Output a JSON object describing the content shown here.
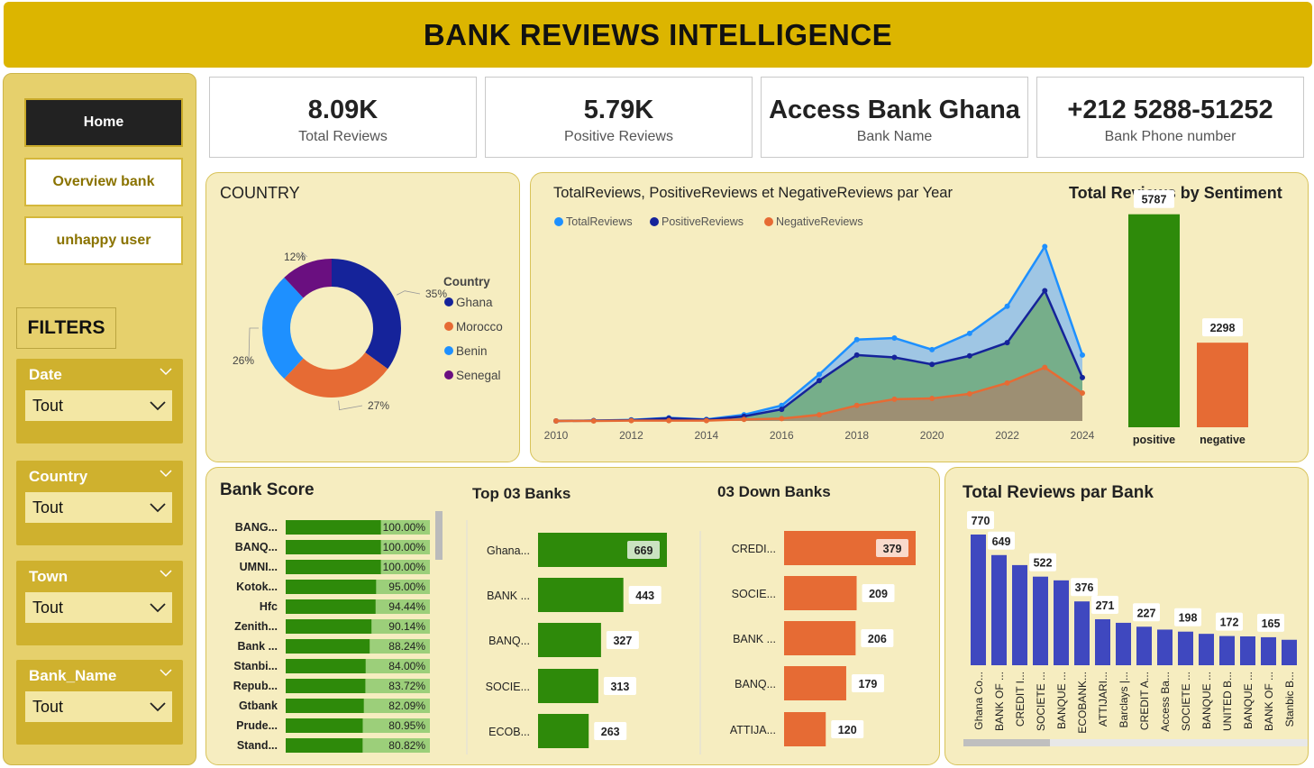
{
  "header": {
    "title": "BANK REVIEWS INTELLIGENCE"
  },
  "nav": {
    "items": [
      {
        "label": "Home",
        "active": true
      },
      {
        "label": "Overview bank",
        "active": false
      },
      {
        "label": "unhappy user",
        "active": false
      }
    ]
  },
  "filters": {
    "title": "FILTERS",
    "items": [
      {
        "label": "Date",
        "value": "Tout"
      },
      {
        "label": "Country",
        "value": "Tout"
      },
      {
        "label": "Town",
        "value": "Tout"
      },
      {
        "label": "Bank_Name",
        "value": "Tout"
      }
    ]
  },
  "kpis": [
    {
      "value": "8.09K",
      "label": "Total Reviews"
    },
    {
      "value": "5.79K",
      "label": "Positive Reviews"
    },
    {
      "value": "Access Bank Ghana",
      "label": "Bank Name"
    },
    {
      "value": "+212 5288-51252",
      "label": "Bank Phone number"
    }
  ],
  "colors": {
    "gold": "#dcb500",
    "panel": "#f6edc0",
    "green": "#2e8a0a",
    "orange": "#e66b34",
    "navy": "#15239a",
    "lightblue": "#1e90ff",
    "purple": "#6a0f80",
    "bar_blue": "#3f48bf"
  },
  "country_chart": {
    "title": "COUNTRY",
    "legend_title": "Country",
    "chart_data": {
      "type": "pie",
      "labels": [
        "Ghana",
        "Morocco",
        "Benin",
        "Senegal"
      ],
      "values": [
        35,
        27,
        26,
        12
      ],
      "value_labels": [
        "35%",
        "27%",
        "26%",
        "12%"
      ],
      "colors": [
        "#15239a",
        "#e66b34",
        "#1e90ff",
        "#6a0f80"
      ],
      "legend": "right"
    }
  },
  "year_chart": {
    "title": "TotalReviews, PositiveReviews et NegativeReviews par Year",
    "chart_data": {
      "type": "area",
      "x": [
        2010,
        2011,
        2012,
        2013,
        2014,
        2015,
        2016,
        2017,
        2018,
        2019,
        2020,
        2021,
        2022,
        2023,
        2024
      ],
      "x_ticks": [
        "2010",
        "2012",
        "2014",
        "2016",
        "2018",
        "2020",
        "2022",
        "2024"
      ],
      "series": [
        {
          "name": "TotalReviews",
          "color": "#1e90ff",
          "values": [
            0,
            5,
            15,
            40,
            20,
            80,
            200,
            600,
            1050,
            1070,
            920,
            1130,
            1480,
            2250,
            850
          ]
        },
        {
          "name": "PositiveReviews",
          "color": "#15239a",
          "values": [
            0,
            5,
            10,
            35,
            15,
            60,
            150,
            520,
            850,
            820,
            730,
            840,
            1010,
            1680,
            560
          ]
        },
        {
          "name": "NegativeReviews",
          "color": "#e66b34",
          "values": [
            0,
            0,
            5,
            5,
            5,
            20,
            30,
            80,
            200,
            280,
            290,
            350,
            490,
            690,
            360
          ]
        }
      ],
      "ylim": [
        0,
        2500
      ],
      "legend": "top-left"
    }
  },
  "sentiment_chart": {
    "title": "Total Reviews by Sentiment",
    "chart_data": {
      "type": "bar",
      "categories": [
        "positive",
        "negative"
      ],
      "values": [
        5787,
        2298
      ],
      "value_labels": [
        "5787",
        "2298"
      ],
      "colors": [
        "#2e8a0a",
        "#e66b34"
      ]
    }
  },
  "bank_score": {
    "title": "Bank Score",
    "chart_data": {
      "type": "bar",
      "categories": [
        "BANG...",
        "BANQ...",
        "UMNI...",
        "Kotok...",
        "Hfc",
        "Zenith...",
        "Bank ...",
        "Stanbi...",
        "Repub...",
        "Gtbank",
        "Prude...",
        "Stand..."
      ],
      "values": [
        100.0,
        100.0,
        100.0,
        95.0,
        94.44,
        90.14,
        88.24,
        84.0,
        83.72,
        82.09,
        80.95,
        80.82
      ],
      "value_labels": [
        "100.00%",
        "100.00%",
        "100.00%",
        "95.00%",
        "94.44%",
        "90.14%",
        "88.24%",
        "84.00%",
        "83.72%",
        "82.09%",
        "80.95%",
        "80.82%"
      ]
    }
  },
  "top_banks": {
    "title": "Top 03 Banks",
    "chart_data": {
      "type": "bar",
      "categories": [
        "Ghana...",
        "BANK ...",
        "BANQ...",
        "SOCIE...",
        "ECOB..."
      ],
      "values": [
        669,
        443,
        327,
        313,
        263
      ],
      "value_labels": [
        "669",
        "443",
        "327",
        "313",
        "263"
      ]
    }
  },
  "down_banks": {
    "title": "03 Down Banks",
    "chart_data": {
      "type": "bar",
      "categories": [
        "CREDI...",
        "SOCIE...",
        "BANK ...",
        "BANQ...",
        "ATTIJA..."
      ],
      "values": [
        379,
        209,
        206,
        179,
        120
      ],
      "value_labels": [
        "379",
        "209",
        "206",
        "179",
        "120"
      ]
    }
  },
  "bank_totals": {
    "title": "Total Reviews par Bank",
    "chart_data": {
      "type": "bar",
      "categories": [
        "Ghana Co...",
        "BANK OF ...",
        "CREDIT I...",
        "SOCIETE ...",
        "BANQUE ...",
        "ECOBANK...",
        "ATTIJARI...",
        "Barclays |...",
        "CREDIT A...",
        "Access Ba...",
        "SOCIETE ...",
        "BANQUE ...",
        "UNITED B...",
        "BANQUE ...",
        "BANK OF ...",
        "Stanbic B..."
      ],
      "values": [
        770,
        649,
        590,
        522,
        500,
        376,
        271,
        250,
        227,
        210,
        198,
        185,
        172,
        170,
        165,
        150
      ],
      "value_labels": [
        "770",
        "649",
        "",
        "522",
        "",
        "376",
        "271",
        "",
        "227",
        "",
        "198",
        "",
        "172",
        "",
        "165",
        ""
      ]
    }
  }
}
